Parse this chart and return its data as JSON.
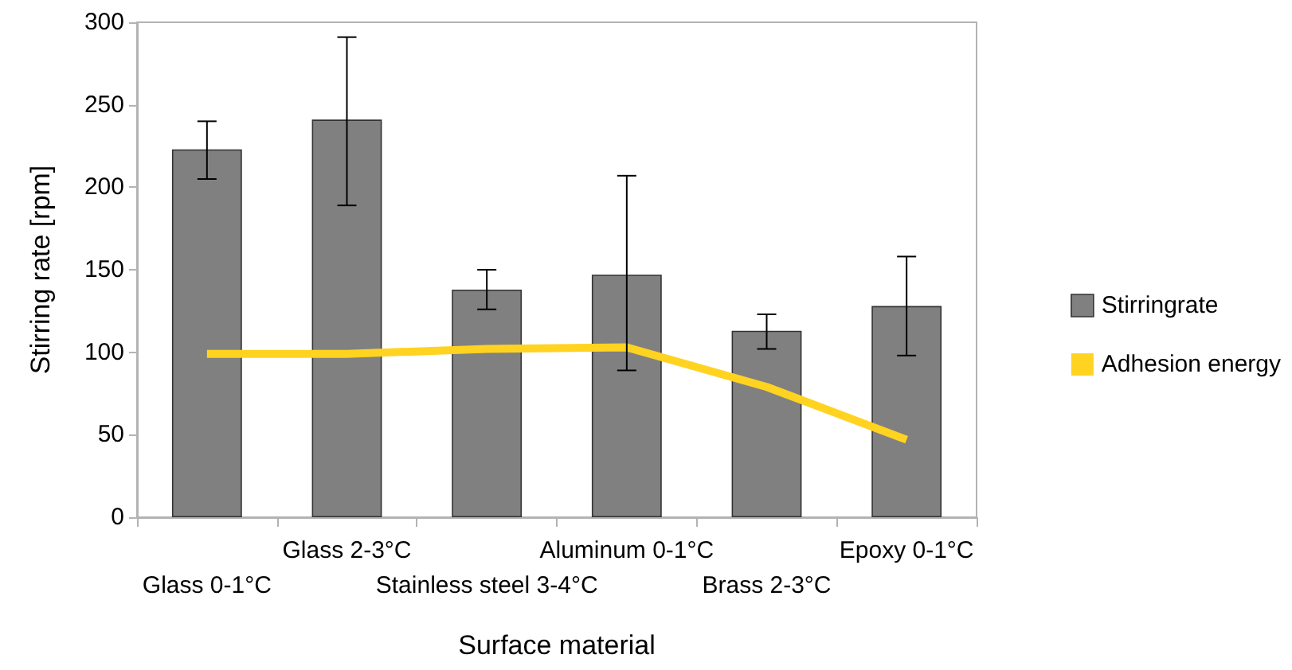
{
  "chart_data": {
    "type": "bar",
    "xlabel": "Surface material",
    "ylabel": "Stirring rate [rpm]",
    "categories": [
      "Glass 0-1°C",
      "Glass 2-3°C",
      "Stainless steel 3-4°C",
      "Aluminum 0-1°C",
      "Brass 2-3°C",
      "Epoxy 0-1°C"
    ],
    "series": [
      {
        "name": "Stirringrate",
        "color": "#808080",
        "values": [
          223,
          241,
          138,
          147,
          113,
          128
        ],
        "errors": [
          [
            205,
            240
          ],
          [
            189,
            291
          ],
          [
            126,
            150
          ],
          [
            89,
            207
          ],
          [
            102,
            123
          ],
          [
            98,
            158
          ]
        ]
      },
      {
        "name": "Adhesion energy",
        "type": "line",
        "color": "#ffd320",
        "values": [
          99,
          99,
          102,
          103,
          79,
          47
        ]
      }
    ],
    "ylim": [
      0,
      300
    ],
    "yticks": [
      0,
      50,
      100,
      150,
      200,
      250,
      300
    ],
    "grid": false,
    "legend": "right",
    "marker": "none"
  }
}
